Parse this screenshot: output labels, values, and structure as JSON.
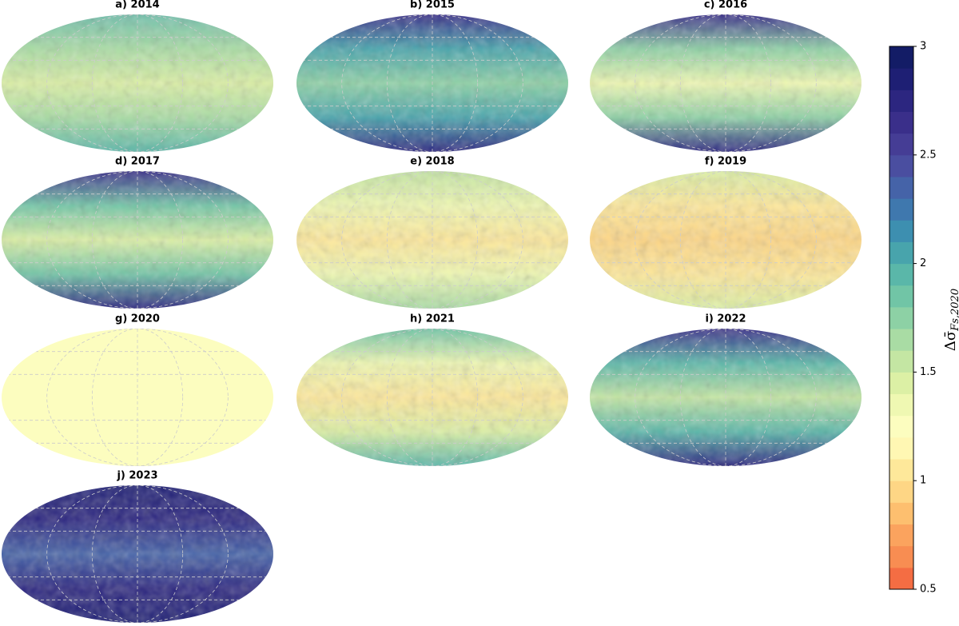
{
  "chart_data": {
    "type": "map",
    "panels": [
      {
        "title": "a) 2014",
        "colors": [
          "#6fbfab",
          "#a9dca4",
          "#dcf0a5",
          "#a9dca4",
          "#5ab7a9"
        ]
      },
      {
        "title": "b) 2015",
        "colors": [
          "#3a2f8a",
          "#48a4ac",
          "#8dd1a5",
          "#48a4ac",
          "#2c2680"
        ]
      },
      {
        "title": "c) 2016",
        "colors": [
          "#3a2f8a",
          "#8dd1a5",
          "#eff8b2",
          "#8dd1a5",
          "#2c2680"
        ]
      },
      {
        "title": "d) 2017",
        "colors": [
          "#3a2f8a",
          "#71c5a6",
          "#dcf0a5",
          "#71c5a6",
          "#2c2680"
        ]
      },
      {
        "title": "e) 2018",
        "colors": [
          "#c4e6a3",
          "#eff8b2",
          "#fee89a",
          "#eff8b2",
          "#a9dca4"
        ]
      },
      {
        "title": "f) 2019",
        "colors": [
          "#dcf0a5",
          "#fee89a",
          "#fed685",
          "#fee89a",
          "#dcf0a5"
        ]
      },
      {
        "title": "g) 2020",
        "colors": [
          "#fcfdbf",
          "#fcfdbf",
          "#fcfdbf",
          "#fcfdbf",
          "#fcfdbf"
        ]
      },
      {
        "title": "h) 2021",
        "colors": [
          "#71c5a6",
          "#eff8b2",
          "#fee89a",
          "#dcf0a5",
          "#5ab7a9"
        ]
      },
      {
        "title": "i) 2022",
        "colors": [
          "#3a2f8a",
          "#5ab7a9",
          "#c4e6a3",
          "#5ab7a9",
          "#2c2680"
        ]
      },
      {
        "title": "j) 2023",
        "colors": [
          "#1e1f74",
          "#2c2680",
          "#4563a8",
          "#2c2680",
          "#1e1f74"
        ]
      }
    ],
    "colorbar": {
      "label": "Δσ̄",
      "label_subscript": "Fs,2020",
      "lim": [
        0.5,
        3
      ],
      "ticks": [
        0.5,
        1,
        1.5,
        2,
        2.5,
        3
      ],
      "colors": [
        "#f46d43",
        "#f88d52",
        "#fba35e",
        "#fdbf6f",
        "#fed685",
        "#fee89a",
        "#fff7b3",
        "#fcfdbf",
        "#eff8b2",
        "#dcf0a5",
        "#c4e6a3",
        "#a9dca4",
        "#8dd1a5",
        "#71c5a6",
        "#5ab7a9",
        "#48a4ac",
        "#3d8fb0",
        "#3f78ae",
        "#4563a8",
        "#4a4ea0",
        "#453d95",
        "#3a2f8a",
        "#2c2680",
        "#1e1f74",
        "#131c66"
      ]
    }
  }
}
